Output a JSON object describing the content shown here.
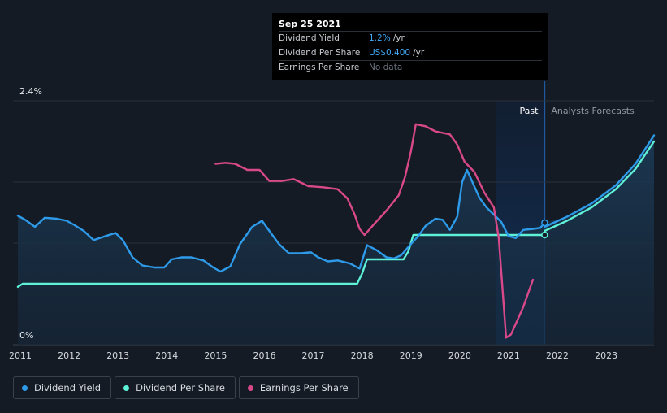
{
  "tooltip": {
    "date": "Sep 25 2021",
    "rows": [
      {
        "label": "Dividend Yield",
        "value": "1.2%",
        "unit": "/yr"
      },
      {
        "label": "Dividend Per Share",
        "value": "US$0.400",
        "unit": "/yr"
      },
      {
        "label": "Earnings Per Share",
        "value": "No data",
        "unit": ""
      }
    ]
  },
  "zones": {
    "past": "Past",
    "forecast": "Analysts Forecasts"
  },
  "legend": [
    {
      "label": "Dividend Yield",
      "color": "#2e9bea"
    },
    {
      "label": "Dividend Per Share",
      "color": "#5ff0d8"
    },
    {
      "label": "Earnings Per Share",
      "color": "#d9498a"
    }
  ],
  "chart_data": {
    "type": "line",
    "x_ticks": [
      "2011",
      "2012",
      "2013",
      "2014",
      "2015",
      "2016",
      "2017",
      "2018",
      "2019",
      "2020",
      "2021",
      "2022",
      "2023"
    ],
    "y_ticks": [
      "0%",
      "2.4%"
    ],
    "ylim": [
      0,
      2.4
    ],
    "xlim": [
      2010.85,
      2023.98
    ],
    "past_end": 2021.74,
    "highlight_start": 2020.74,
    "series": [
      {
        "name": "Dividend Yield",
        "color": "#2e9bea",
        "points": [
          [
            2010.95,
            1.27
          ],
          [
            2011.1,
            1.23
          ],
          [
            2011.3,
            1.16
          ],
          [
            2011.5,
            1.25
          ],
          [
            2011.75,
            1.24
          ],
          [
            2011.95,
            1.22
          ],
          [
            2012.1,
            1.18
          ],
          [
            2012.3,
            1.12
          ],
          [
            2012.5,
            1.03
          ],
          [
            2012.75,
            1.07
          ],
          [
            2012.95,
            1.1
          ],
          [
            2013.1,
            1.03
          ],
          [
            2013.3,
            0.86
          ],
          [
            2013.5,
            0.78
          ],
          [
            2013.75,
            0.76
          ],
          [
            2013.95,
            0.76
          ],
          [
            2014.1,
            0.84
          ],
          [
            2014.3,
            0.86
          ],
          [
            2014.5,
            0.86
          ],
          [
            2014.75,
            0.83
          ],
          [
            2014.95,
            0.76
          ],
          [
            2015.1,
            0.72
          ],
          [
            2015.3,
            0.77
          ],
          [
            2015.5,
            0.99
          ],
          [
            2015.75,
            1.16
          ],
          [
            2015.95,
            1.22
          ],
          [
            2016.1,
            1.12
          ],
          [
            2016.3,
            0.99
          ],
          [
            2016.5,
            0.9
          ],
          [
            2016.75,
            0.9
          ],
          [
            2016.95,
            0.91
          ],
          [
            2017.1,
            0.86
          ],
          [
            2017.3,
            0.82
          ],
          [
            2017.5,
            0.83
          ],
          [
            2017.75,
            0.8
          ],
          [
            2017.95,
            0.75
          ],
          [
            2018.1,
            0.98
          ],
          [
            2018.3,
            0.93
          ],
          [
            2018.5,
            0.86
          ],
          [
            2018.65,
            0.85
          ],
          [
            2018.8,
            0.88
          ],
          [
            2019.0,
            0.99
          ],
          [
            2019.15,
            1.07
          ],
          [
            2019.3,
            1.17
          ],
          [
            2019.5,
            1.24
          ],
          [
            2019.65,
            1.23
          ],
          [
            2019.8,
            1.13
          ],
          [
            2019.95,
            1.26
          ],
          [
            2020.05,
            1.6
          ],
          [
            2020.15,
            1.72
          ],
          [
            2020.25,
            1.61
          ],
          [
            2020.4,
            1.45
          ],
          [
            2020.55,
            1.35
          ],
          [
            2020.7,
            1.28
          ],
          [
            2020.85,
            1.21
          ],
          [
            2021.0,
            1.07
          ],
          [
            2021.15,
            1.05
          ],
          [
            2021.3,
            1.13
          ],
          [
            2021.5,
            1.14
          ],
          [
            2021.65,
            1.15
          ],
          [
            2021.74,
            1.2
          ]
        ]
      },
      {
        "name": "Dividend Per Share",
        "color": "#5ff0d8",
        "points": [
          [
            2010.95,
            0.57
          ],
          [
            2011.05,
            0.6
          ],
          [
            2011.15,
            0.6
          ],
          [
            2012,
            0.6
          ],
          [
            2013,
            0.6
          ],
          [
            2014,
            0.6
          ],
          [
            2015,
            0.6
          ],
          [
            2016,
            0.6
          ],
          [
            2017,
            0.6
          ],
          [
            2017.9,
            0.6
          ],
          [
            2018.0,
            0.7
          ],
          [
            2018.1,
            0.84
          ],
          [
            2018.2,
            0.84
          ],
          [
            2018.85,
            0.84
          ],
          [
            2018.95,
            0.92
          ],
          [
            2019.05,
            1.08
          ],
          [
            2019.15,
            1.08
          ],
          [
            2020,
            1.08
          ],
          [
            2021,
            1.08
          ],
          [
            2021.74,
            1.08
          ]
        ]
      },
      {
        "name": "Dividend Per Share Forecast",
        "color": "#5ff0d8",
        "points": [
          [
            2021.74,
            1.12
          ],
          [
            2022.2,
            1.22
          ],
          [
            2022.7,
            1.35
          ],
          [
            2023.2,
            1.53
          ],
          [
            2023.6,
            1.73
          ],
          [
            2023.98,
            2.0
          ]
        ]
      },
      {
        "name": "Dividend Yield Forecast",
        "color": "#2e9bea",
        "points": [
          [
            2021.74,
            1.16
          ],
          [
            2022.2,
            1.26
          ],
          [
            2022.7,
            1.39
          ],
          [
            2023.2,
            1.57
          ],
          [
            2023.6,
            1.78
          ],
          [
            2023.98,
            2.06
          ]
        ]
      },
      {
        "name": "Earnings Per Share",
        "color": "#d9498a",
        "points": [
          [
            2015.0,
            1.78
          ],
          [
            2015.2,
            1.79
          ],
          [
            2015.4,
            1.78
          ],
          [
            2015.65,
            1.72
          ],
          [
            2015.9,
            1.72
          ],
          [
            2016.1,
            1.61
          ],
          [
            2016.35,
            1.61
          ],
          [
            2016.6,
            1.63
          ],
          [
            2016.9,
            1.56
          ],
          [
            2017.2,
            1.55
          ],
          [
            2017.5,
            1.53
          ],
          [
            2017.7,
            1.44
          ],
          [
            2017.85,
            1.28
          ],
          [
            2017.95,
            1.14
          ],
          [
            2018.05,
            1.08
          ],
          [
            2018.25,
            1.19
          ],
          [
            2018.5,
            1.32
          ],
          [
            2018.75,
            1.47
          ],
          [
            2018.88,
            1.65
          ],
          [
            2019.0,
            1.9
          ],
          [
            2019.1,
            2.17
          ],
          [
            2019.3,
            2.15
          ],
          [
            2019.5,
            2.1
          ],
          [
            2019.8,
            2.07
          ],
          [
            2019.95,
            1.97
          ],
          [
            2020.1,
            1.8
          ],
          [
            2020.3,
            1.7
          ],
          [
            2020.5,
            1.5
          ],
          [
            2020.7,
            1.35
          ],
          [
            2020.8,
            1.05
          ],
          [
            2020.9,
            0.4
          ],
          [
            2020.95,
            0.07
          ],
          [
            2021.05,
            0.1
          ],
          [
            2021.3,
            0.37
          ],
          [
            2021.5,
            0.64
          ]
        ]
      }
    ]
  }
}
